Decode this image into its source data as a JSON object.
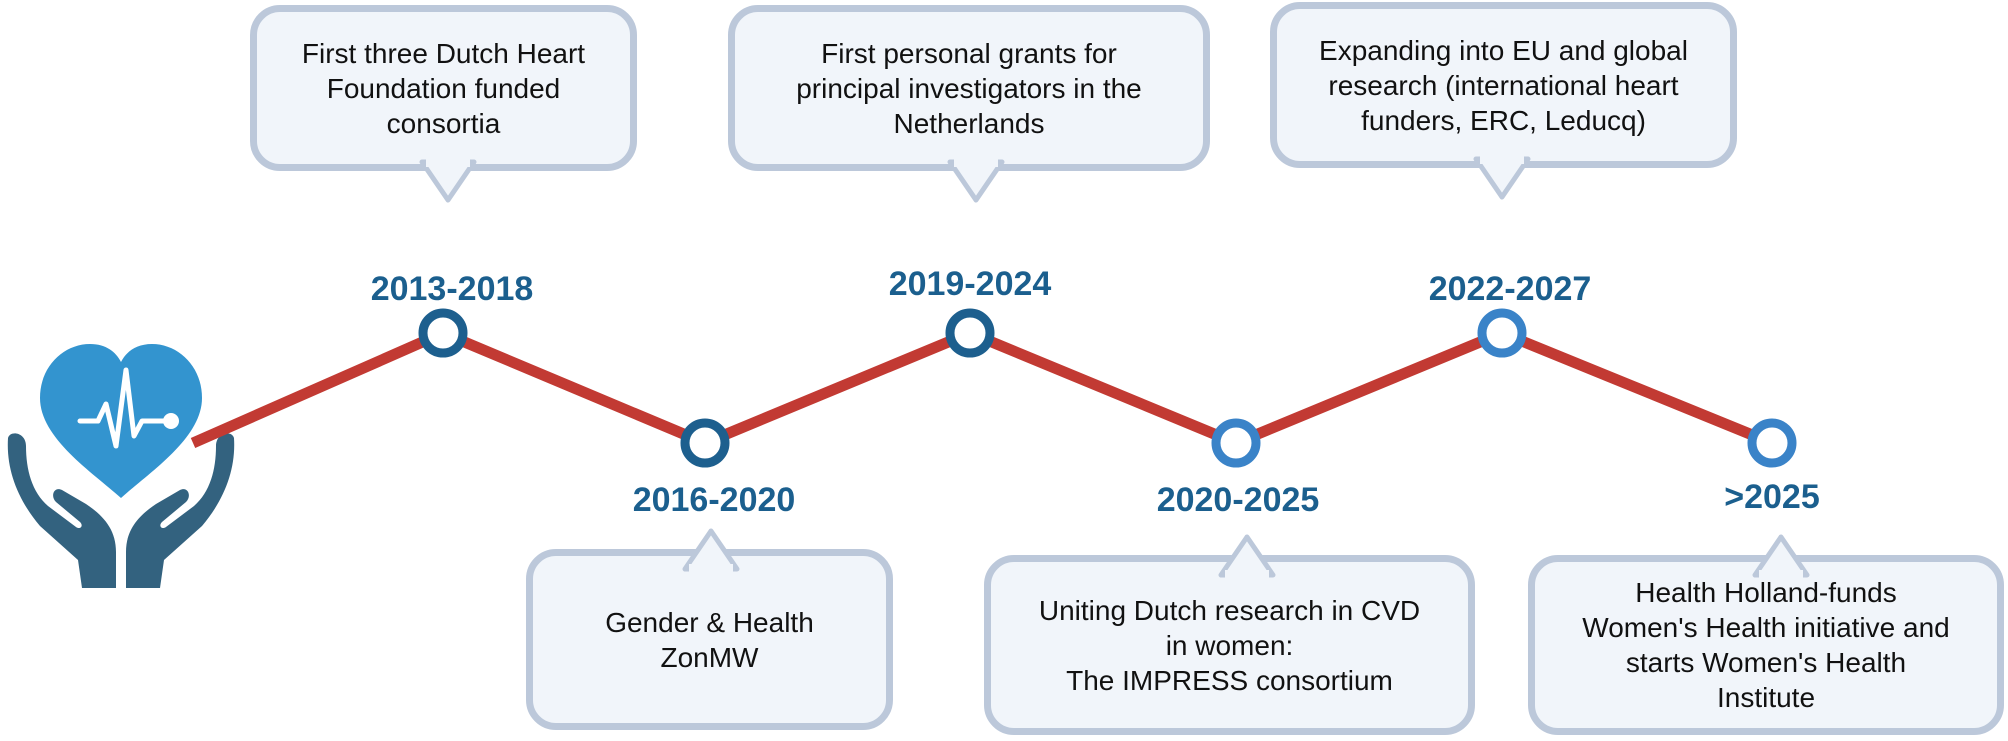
{
  "colors": {
    "line": "#c23a33",
    "node_dark": "#1d5f8e",
    "node_light": "#3a83c8",
    "year_text": "#1b5f8e",
    "box_fill": "#f1f5fa",
    "box_border": "#bcc8da",
    "heart": "#3394cf",
    "hands": "#33627f"
  },
  "logo_icon": "heart-in-hands-icon",
  "milestones": [
    {
      "period": "2013-2018",
      "text": "First three Dutch Heart\nFoundation funded\nconsortia"
    },
    {
      "period": "2016-2020",
      "text": "Gender & Health\nZonMW"
    },
    {
      "period": "2019-2024",
      "text": "First personal grants for\nprincipal investigators in the\nNetherlands"
    },
    {
      "period": "2020-2025",
      "text": "Uniting Dutch research in CVD\nin women:\nThe IMPRESS consortium"
    },
    {
      "period": "2022-2027",
      "text": "Expanding into EU and global\nresearch (international heart\nfunders, ERC, Leducq)"
    },
    {
      "period": ">2025",
      "text": "Health Holland-funds\nWomen's Health initiative and\nstarts Women's Health\nInstitute"
    }
  ]
}
